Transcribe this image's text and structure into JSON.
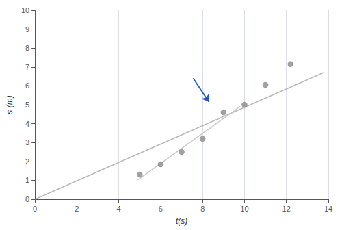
{
  "chart_data": {
    "type": "scatter",
    "xlabel": "t(s)",
    "ylabel": "s (m)",
    "xlim": [
      0,
      14
    ],
    "ylim": [
      0,
      10
    ],
    "xticks": [
      0,
      2,
      4,
      6,
      8,
      10,
      12,
      14
    ],
    "yticks": [
      0,
      1,
      2,
      3,
      4,
      5,
      6,
      7,
      8,
      9,
      10
    ],
    "grid": "x",
    "series": [
      {
        "type": "line",
        "color": "#b8b8b8",
        "x": [
          0,
          13.8
        ],
        "values": [
          0,
          6.71121
        ]
      },
      {
        "type": "line",
        "color": "#c8c8c8",
        "x": [
          4.9,
          9.8
        ],
        "values": [
          1.0205,
          4.916
        ]
      },
      {
        "type": "scatter",
        "color": "#8a8a8a",
        "x": [
          5.0,
          6.0,
          7.0,
          8.0,
          9.0,
          10.0,
          11.0,
          12.2
        ],
        "values": [
          1.3,
          1.85,
          2.5,
          3.2,
          4.6,
          5.0,
          6.05,
          7.15
        ]
      }
    ],
    "arrows": [
      {
        "x": [
          7.55,
          8.3
        ],
        "y": [
          6.4,
          5.15
        ],
        "color": "#2255cc"
      }
    ]
  }
}
